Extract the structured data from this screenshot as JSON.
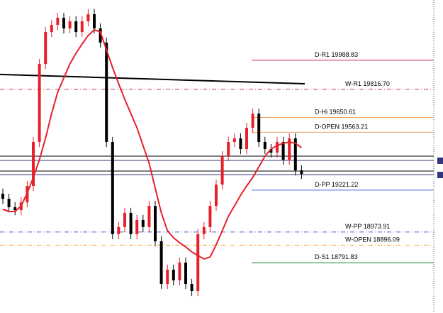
{
  "chart_data": {
    "type": "candlestick",
    "ylim": [
      18495,
      20345
    ],
    "up_color": "#e8202a",
    "down_color": "#000000",
    "open": [
      19200,
      19170,
      19120,
      19103,
      19149,
      19246,
      19506,
      19967,
      20156,
      20198,
      20240,
      20177,
      20219,
      20156,
      20219,
      20261,
      20177,
      20093,
      19506,
      18961,
      19003,
      19087,
      18961,
      19045,
      19003,
      19128,
      18919,
      18667,
      18751,
      18688,
      18793,
      18667,
      18625,
      18961,
      19003,
      19128,
      19254,
      19422,
      19506,
      19527,
      19464,
      19590,
      19674,
      19506,
      19464,
      19443,
      19506,
      19401,
      19527,
      19338
    ],
    "high": [
      19230,
      19200,
      19150,
      19179,
      19276,
      19536,
      19997,
      20186,
      20228,
      20270,
      20270,
      20249,
      20249,
      20249,
      20291,
      20291,
      20207,
      20123,
      19536,
      19033,
      19117,
      19117,
      19075,
      19075,
      19158,
      19158,
      18949,
      18781,
      18781,
      18823,
      18823,
      18697,
      18991,
      19033,
      19158,
      19284,
      19452,
      19536,
      19557,
      19557,
      19620,
      19704,
      19704,
      19536,
      19494,
      19536,
      19536,
      19557,
      19557,
      19368
    ],
    "low": [
      19140,
      19090,
      19073,
      19073,
      19119,
      19216,
      19476,
      19937,
      20126,
      20168,
      20147,
      20147,
      20126,
      20126,
      20189,
      20147,
      20063,
      19476,
      18931,
      18931,
      18973,
      18931,
      18931,
      18973,
      18973,
      18889,
      18637,
      18637,
      18658,
      18658,
      18637,
      18595,
      18595,
      18931,
      18973,
      19098,
      19224,
      19392,
      19476,
      19434,
      19434,
      19560,
      19476,
      19434,
      19413,
      19413,
      19371,
      19371,
      19308,
      19287
    ],
    "close": [
      19170,
      19120,
      19103,
      19149,
      19246,
      19506,
      19967,
      20156,
      20198,
      20240,
      20177,
      20219,
      20156,
      20219,
      20261,
      20177,
      20093,
      19506,
      18961,
      19003,
      19087,
      18961,
      19045,
      19003,
      19128,
      18919,
      18667,
      18751,
      18688,
      18793,
      18667,
      18625,
      18961,
      19003,
      19128,
      19254,
      19422,
      19506,
      19527,
      19464,
      19590,
      19674,
      19506,
      19464,
      19443,
      19506,
      19401,
      19527,
      19338,
      19317
    ],
    "moving_average": {
      "color": "#e8202a",
      "values": [
        19108,
        19095,
        19095,
        19128,
        19204,
        19296,
        19401,
        19527,
        19674,
        19800,
        19884,
        19967,
        20030,
        20085,
        20135,
        20169,
        20156,
        20051,
        19946,
        19850,
        19758,
        19674,
        19590,
        19485,
        19380,
        19233,
        19087,
        18982,
        18940,
        18910,
        18885,
        18856,
        18835,
        18814,
        18826,
        18898,
        18982,
        19066,
        19128,
        19191,
        19246,
        19296,
        19359,
        19422,
        19464,
        19485,
        19498,
        19506,
        19498,
        19472
      ]
    },
    "trendline": {
      "color": "#000000",
      "values": [
        19905,
        19850
      ]
    },
    "levels": [
      {
        "name": "D-R1",
        "value": 19988.83,
        "color": "#c8304f",
        "style": "solid"
      },
      {
        "name": "W-R1",
        "value": 19816.7,
        "value_label": "19816.70",
        "color": "#c8304f",
        "style": "dashdot"
      },
      {
        "name": "D-Hi",
        "value": 19650.61,
        "color": "#f0a060",
        "style": "solid"
      },
      {
        "name": "D-OPEN",
        "value": 19563.21,
        "color": "#f0a060",
        "style": "solid"
      },
      {
        "name": "D-PP",
        "value": 19221.22,
        "color": "#4868e8",
        "style": "solid"
      },
      {
        "name": "W-PP",
        "value": 18973.91,
        "color": "#4868c8",
        "style": "dashdot"
      },
      {
        "name": "W-OPEN",
        "value": 18896.09,
        "color": "#f0a030",
        "style": "dashdot"
      },
      {
        "name": "D-S1",
        "value": 18791.83,
        "color": "#208030",
        "style": "solid"
      }
    ],
    "price_lines": [
      {
        "value": 19422,
        "color": "#000000"
      },
      {
        "value": 19397,
        "color": "#303878"
      },
      {
        "value": 19334,
        "color": "#000000"
      },
      {
        "value": 19313,
        "color": "#303878"
      }
    ]
  }
}
